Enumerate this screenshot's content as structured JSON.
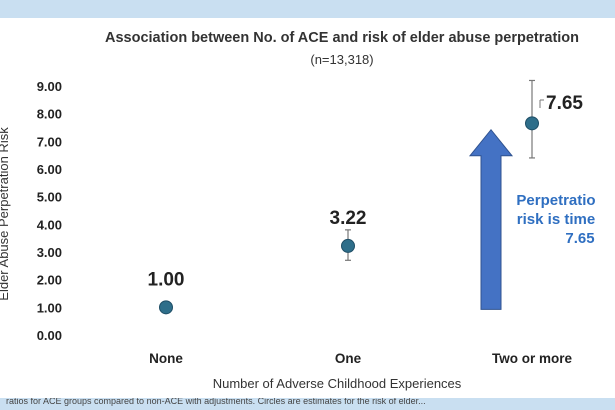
{
  "chart_data": {
    "type": "scatter",
    "title": "Association between No. of ACE and risk of elder abuse perpetration",
    "subtitle": "(n=13,318)",
    "xlabel": "Number of Adverse Childhood Experiences",
    "ylabel": "Elder Abuse Perpetration Risk",
    "categories": [
      "None",
      "One",
      "Two or more"
    ],
    "values": [
      1.0,
      3.22,
      7.65
    ],
    "value_labels": [
      "1.00",
      "3.22",
      "7.65"
    ],
    "error_bars": [
      null,
      {
        "low": 2.7,
        "high": 3.8
      },
      {
        "low": 6.4,
        "high": 9.2
      }
    ],
    "ylim": [
      0,
      9
    ],
    "yticks": [
      "0.00",
      "1.00",
      "2.00",
      "3.00",
      "4.00",
      "5.00",
      "6.00",
      "7.00",
      "8.00",
      "9.00"
    ],
    "grid": false,
    "annotation": {
      "lines": [
        "Perpetratio",
        "risk is time",
        "7.65"
      ],
      "arrow_from": 1.0,
      "arrow_to": 7.6
    },
    "colors": {
      "marker": "#2e6e8a",
      "arrow": "#4472c4",
      "annotation_text": "#2f6fc1"
    }
  },
  "footnote": "ratios for ACE groups compared to non-ACE with adjustments. Circles are estimates for the risk of elder..."
}
